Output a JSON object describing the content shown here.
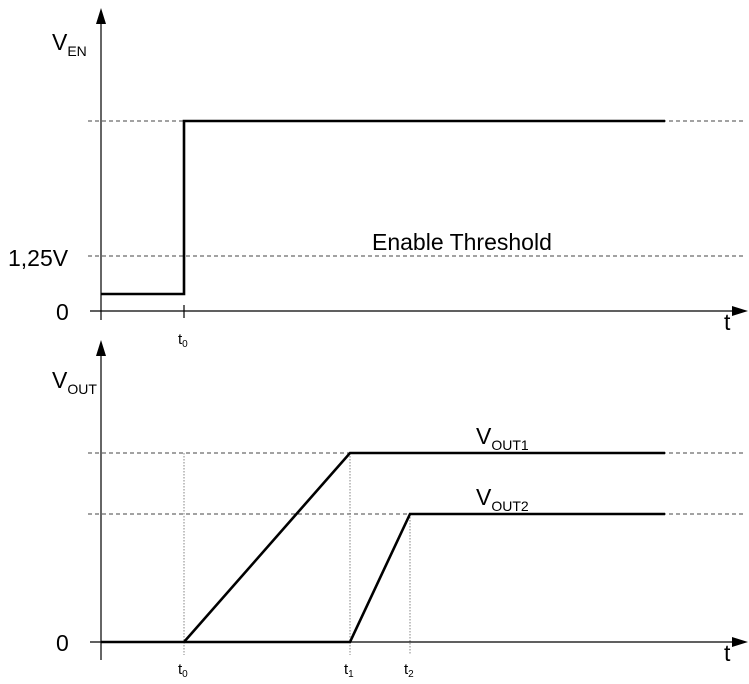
{
  "top": {
    "y_label": {
      "main": "V",
      "sub": "EN"
    },
    "threshold_value": "1,25V",
    "zero": "0",
    "threshold_label": "Enable Threshold",
    "x_label": "t",
    "t_label": {
      "main": "t",
      "sub": "0"
    }
  },
  "bottom": {
    "y_label": {
      "main": "V",
      "sub": "OUT"
    },
    "zero": "0",
    "x_label": "t",
    "series": [
      {
        "main": "V",
        "sub": "OUT1"
      },
      {
        "main": "V",
        "sub": "OUT2"
      }
    ],
    "t_labels": [
      {
        "main": "t",
        "sub": "0"
      },
      {
        "main": "t",
        "sub": "1"
      },
      {
        "main": "t",
        "sub": "2"
      }
    ]
  }
}
